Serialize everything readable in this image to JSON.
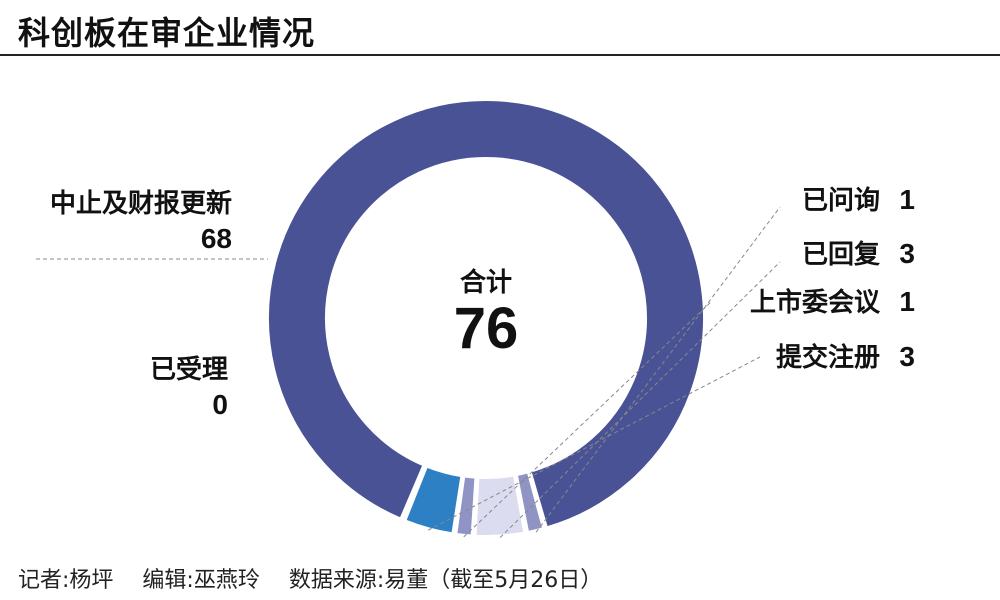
{
  "title": "科创板在审企业情况",
  "footer": {
    "reporter": "记者:杨坪",
    "editor": "编辑:巫燕玲",
    "source": "数据来源:易董（截至5月26日）"
  },
  "center": {
    "label": "合计",
    "total": "76"
  },
  "chart_data": {
    "type": "pie",
    "title": "科创板在审企业情况",
    "total": 76,
    "slices": [
      {
        "label": "已受理",
        "value": 0,
        "color": "#4a5296"
      },
      {
        "label": "已问询",
        "value": 1,
        "color": "#8f94c4"
      },
      {
        "label": "已回复",
        "value": 3,
        "color": "#dcdcf0"
      },
      {
        "label": "上市委会议",
        "value": 1,
        "color": "#8f94c4"
      },
      {
        "label": "提交注册",
        "value": 3,
        "color": "#2e80c4"
      },
      {
        "label": "中止及财报更新",
        "value": 68,
        "color": "#4a5296"
      }
    ]
  }
}
